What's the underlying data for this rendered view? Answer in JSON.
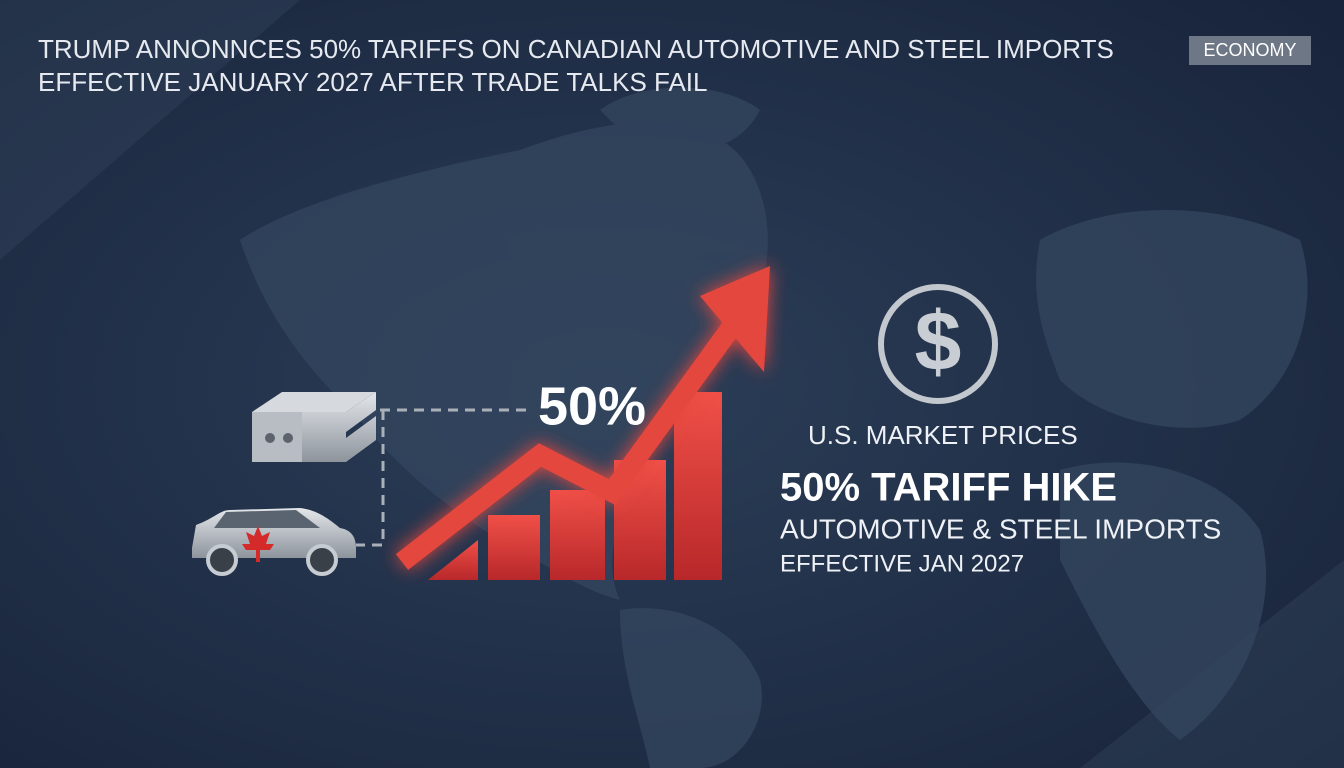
{
  "header": {
    "headline": [
      "TRUMP ANNONNCES 50% TARIFFS ON CANADIAN AUTOMOTIVE AND STEEL IMPORTS",
      "EFFECTIVE JANUARY 2027 AFTER TRADE TALKS FAIL"
    ],
    "tag": "ECONOMY"
  },
  "graphic": {
    "label": "50%"
  },
  "info": {
    "icon_symbol": "$",
    "subtitle": "U.S. MARKET PRICES",
    "title": "50% TARIFF HIKE",
    "detail": "AUTOMOTIVE & STEEL IMPORTS",
    "date": "EFFECTIVE JAN 2027"
  }
}
